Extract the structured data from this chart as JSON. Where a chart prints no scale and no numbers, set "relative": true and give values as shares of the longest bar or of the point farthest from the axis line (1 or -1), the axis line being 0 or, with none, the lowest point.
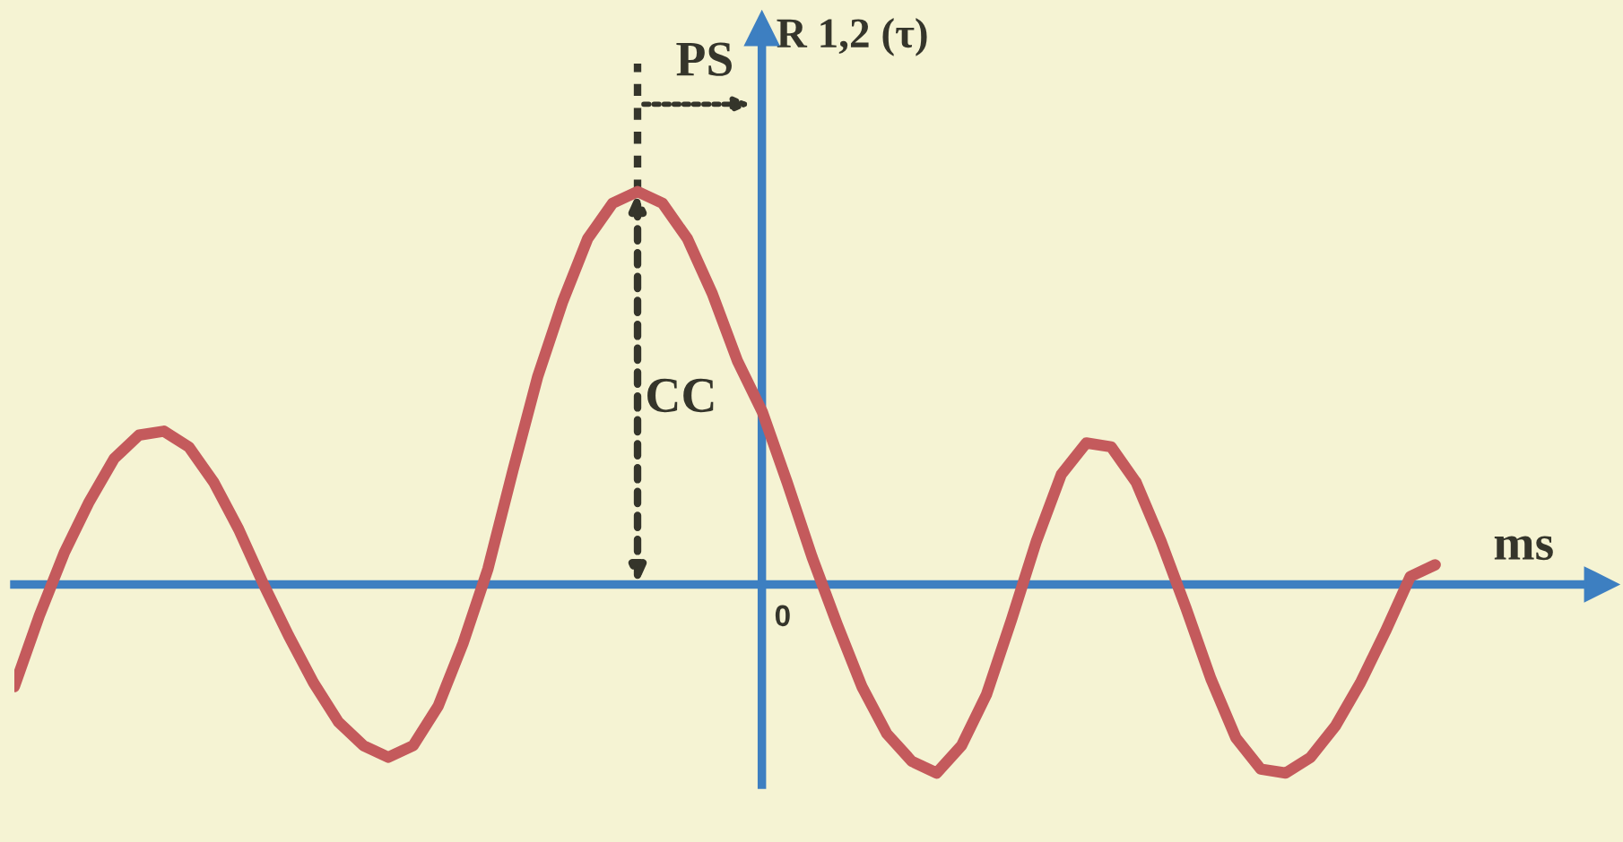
{
  "chart_data": {
    "type": "line",
    "relative": true,
    "xlabel": "ms",
    "ylabel": "R 1,2 (τ)",
    "annotations": [
      "PS",
      "CC",
      "0"
    ],
    "ref_lines": [
      {
        "axis": "y",
        "value": 0,
        "color": "#3d7fc1",
        "line_style": "solid"
      }
    ],
    "categories": [
      null,
      null,
      null,
      null,
      null,
      null,
      null,
      null,
      null,
      null,
      null,
      null,
      null,
      null,
      null,
      null,
      null,
      null,
      null,
      null,
      null,
      null,
      null,
      null,
      null,
      null,
      null,
      null,
      null,
      null,
      null,
      null,
      null,
      null,
      null,
      null,
      null,
      null,
      null,
      null,
      null,
      null,
      null,
      null,
      null,
      null,
      null,
      null,
      null,
      null,
      null,
      null,
      null,
      null,
      null,
      null,
      null,
      null
    ],
    "series": [
      {
        "color": "#c45a5c",
        "values": [
          -0.26,
          -0.08,
          0.08,
          0.21,
          0.32,
          0.38,
          0.39,
          0.35,
          0.26,
          0.14,
          0,
          -0.13,
          -0.25,
          -0.35,
          -0.41,
          -0.44,
          -0.41,
          -0.31,
          -0.15,
          0.04,
          0.29,
          0.53,
          0.72,
          0.88,
          0.97,
          1,
          0.97,
          0.88,
          0.74,
          0.57,
          0.44,
          0.26,
          0.07,
          -0.1,
          -0.26,
          -0.38,
          -0.45,
          -0.48,
          -0.41,
          -0.28,
          -0.09,
          0.11,
          0.28,
          0.36,
          0.35,
          0.26,
          0.11,
          -0.06,
          -0.24,
          -0.39,
          -0.47,
          -0.48,
          -0.44,
          -0.36,
          -0.25,
          -0.12,
          0.02,
          0.05
        ]
      }
    ]
  }
}
